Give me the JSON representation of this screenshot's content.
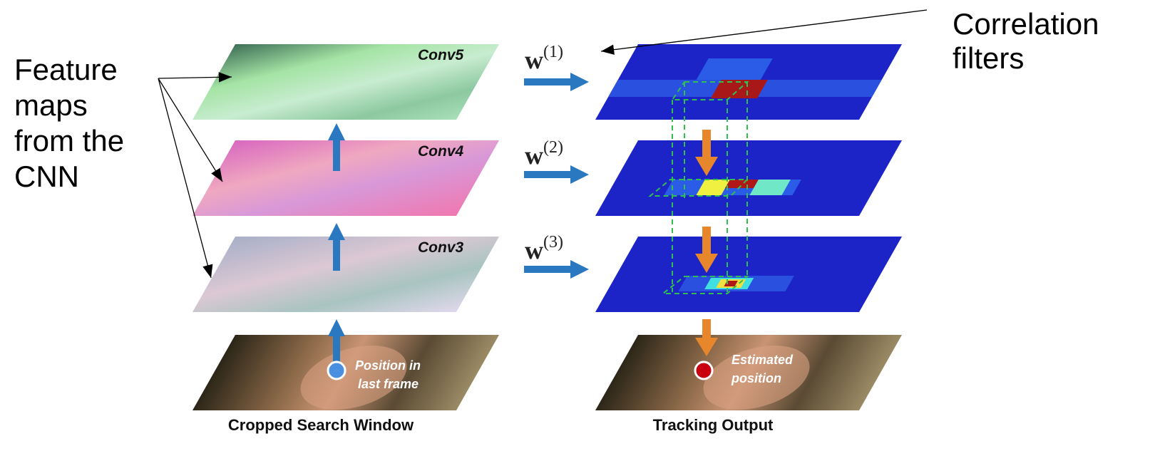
{
  "feature_maps_note": {
    "lines": [
      "Feature",
      "maps",
      "from the",
      "CNN"
    ]
  },
  "correlation_note": {
    "lines": [
      "Correlation",
      "filters"
    ]
  },
  "layers": [
    {
      "label": "Conv5",
      "filter": {
        "symbol": "w",
        "superscript": "(1)"
      }
    },
    {
      "label": "Conv4",
      "filter": {
        "symbol": "w",
        "superscript": "(2)"
      }
    },
    {
      "label": "Conv3",
      "filter": {
        "symbol": "w",
        "superscript": "(3)"
      }
    }
  ],
  "position_marker": {
    "lines": [
      "Position in",
      "last frame"
    ]
  },
  "estimate_marker": {
    "lines": [
      "Estimated",
      "position"
    ]
  },
  "captions": {
    "left": "Cropped Search Window",
    "right": "Tracking Output"
  }
}
